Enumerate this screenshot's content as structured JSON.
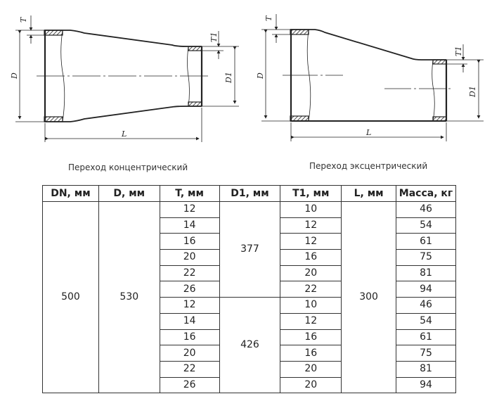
{
  "drawings": {
    "concentric": {
      "caption": "Переход концентрический",
      "labels": {
        "T": "T",
        "T1": "T1",
        "D": "D",
        "D1": "D1",
        "L": "L"
      }
    },
    "eccentric": {
      "caption": "Переход эксцентрический",
      "labels": {
        "T": "T",
        "T1": "T1",
        "D": "D",
        "D1": "D1",
        "L": "L"
      }
    }
  },
  "table": {
    "headers": [
      "DN, мм",
      "D, мм",
      "T, мм",
      "D1, мм",
      "T1, мм",
      "L, мм",
      "Масса, кг"
    ],
    "DN": "500",
    "D": "530",
    "L": "300",
    "groups": [
      {
        "D1": "377",
        "rows": [
          {
            "T": "12",
            "T1": "10",
            "mass": "46"
          },
          {
            "T": "14",
            "T1": "12",
            "mass": "54"
          },
          {
            "T": "16",
            "T1": "12",
            "mass": "61"
          },
          {
            "T": "20",
            "T1": "16",
            "mass": "75"
          },
          {
            "T": "22",
            "T1": "20",
            "mass": "81"
          },
          {
            "T": "26",
            "T1": "22",
            "mass": "94"
          }
        ]
      },
      {
        "D1": "426",
        "rows": [
          {
            "T": "12",
            "T1": "10",
            "mass": "46"
          },
          {
            "T": "14",
            "T1": "12",
            "mass": "54"
          },
          {
            "T": "16",
            "T1": "16",
            "mass": "61"
          },
          {
            "T": "20",
            "T1": "16",
            "mass": "75"
          },
          {
            "T": "22",
            "T1": "20",
            "mass": "81"
          },
          {
            "T": "26",
            "T1": "20",
            "mass": "94"
          }
        ]
      }
    ]
  }
}
